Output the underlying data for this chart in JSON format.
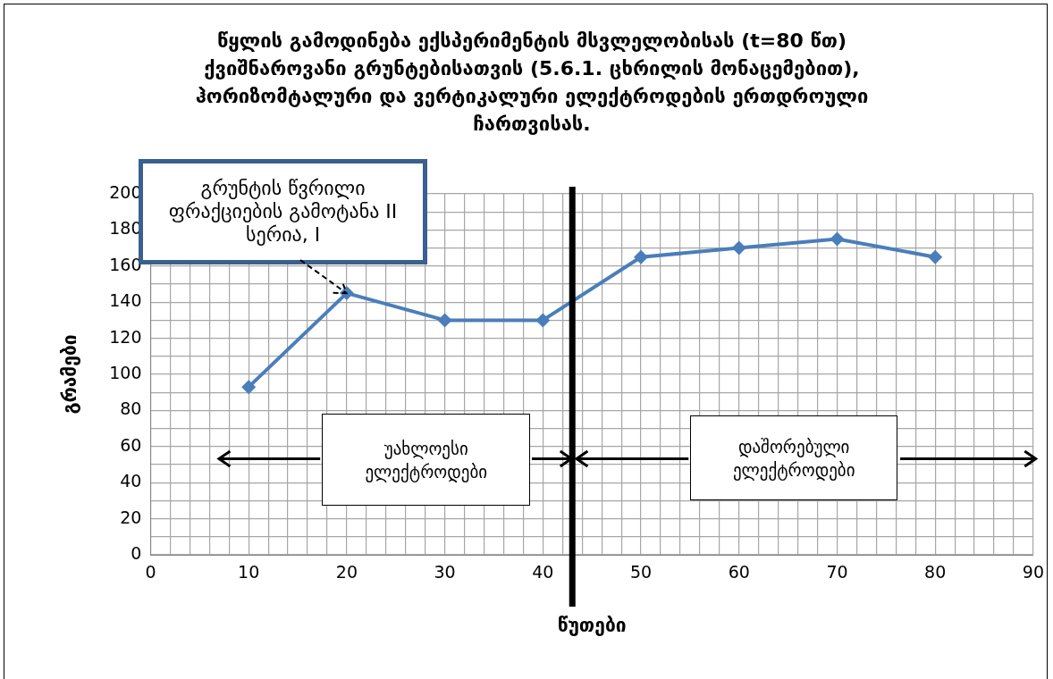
{
  "chart_data": {
    "type": "line",
    "title": "წყლის გამოდინება ექსპერიმენტის მსვლელობისას (t=80 წთ) ქვიშნაროვანი გრუნტებისათვის (5.6.1. ცხრილის მონაცემებით), ჰორიზომტალური და ვერტიკალური ელექტროდების ერთდროული ჩართვისას.",
    "xlabel": "წუთები",
    "ylabel": "გრამები",
    "x": [
      10,
      20,
      30,
      40,
      50,
      60,
      70,
      80
    ],
    "series": [
      {
        "color": "#4a7ebb",
        "values": [
          93,
          145,
          130,
          130,
          165,
          170,
          175,
          165
        ]
      }
    ],
    "xlim": [
      0,
      90
    ],
    "xticks": [
      0,
      {
        "value": 2,
        "label": null
      },
      {
        "value": 4,
        "label": null
      },
      {
        "value": 6,
        "label": null
      },
      {
        "value": 8,
        "label": null
      },
      10,
      {
        "value": 12,
        "label": null
      },
      {
        "value": 14,
        "label": null
      },
      {
        "value": 16,
        "label": null
      },
      {
        "value": 18,
        "label": null
      },
      20,
      {
        "value": 22,
        "label": null
      },
      {
        "value": 24,
        "label": null
      },
      {
        "value": 26,
        "label": null
      },
      {
        "value": 28,
        "label": null
      },
      30,
      {
        "value": 32,
        "label": null
      },
      {
        "value": 34,
        "label": null
      },
      {
        "value": 36,
        "label": null
      },
      {
        "value": 38,
        "label": null
      },
      40,
      {
        "value": 42,
        "label": null
      },
      {
        "value": 44,
        "label": null
      },
      {
        "value": 46,
        "label": null
      },
      {
        "value": 48,
        "label": null
      },
      50,
      {
        "value": 52,
        "label": null
      },
      {
        "value": 54,
        "label": null
      },
      {
        "value": 56,
        "label": null
      },
      {
        "value": 58,
        "label": null
      },
      60,
      {
        "value": 62,
        "label": null
      },
      {
        "value": 64,
        "label": null
      },
      {
        "value": 66,
        "label": null
      },
      {
        "value": 68,
        "label": null
      },
      70,
      {
        "value": 72,
        "label": null
      },
      {
        "value": 74,
        "label": null
      },
      {
        "value": 76,
        "label": null
      },
      {
        "value": 78,
        "label": null
      },
      80,
      {
        "value": 82,
        "label": null
      },
      {
        "value": 84,
        "label": null
      },
      {
        "value": 86,
        "label": null
      },
      {
        "value": 88,
        "label": null
      },
      90
    ],
    "ylim": [
      0,
      200
    ],
    "yticks": [
      0,
      {
        "value": 10,
        "label": null
      },
      20,
      {
        "value": 30,
        "label": null
      },
      40,
      {
        "value": 50,
        "label": null
      },
      60,
      {
        "value": 70,
        "label": null
      },
      80,
      {
        "value": 90,
        "label": null
      },
      100,
      {
        "value": 110,
        "label": null
      },
      120,
      {
        "value": 130,
        "label": null
      },
      140,
      {
        "value": 150,
        "label": null
      },
      160,
      {
        "value": 170,
        "label": null
      },
      180,
      {
        "value": 190,
        "label": null
      },
      200
    ],
    "grid": true,
    "legend": false,
    "marker": "diamond",
    "line_style": "solid",
    "ref_lines": [
      {
        "axis": "x",
        "value": 43,
        "color": "#000000"
      }
    ],
    "annotations": [
      {
        "text": "გრუნტის წვრილი ფრაქციების გამოტანა II სერია, I",
        "x": 20,
        "y": 145
      },
      "უახლოესი ელექტროდები",
      "დაშორებული ელექტროდები"
    ]
  }
}
